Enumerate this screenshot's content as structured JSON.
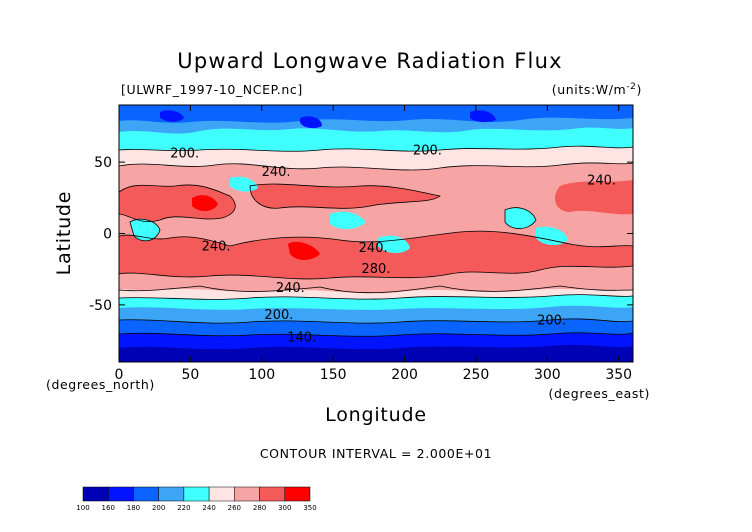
{
  "chart_data": {
    "type": "heatmap",
    "title": "Upward Longwave Radiation Flux",
    "source_label": "[ULWRF_1997-10_NCEP.nc]",
    "units_label": "(units:W/m^-2)",
    "xlabel": "Longitude",
    "ylabel": "Latitude",
    "x_unit_label": "(degrees_east)",
    "y_unit_label": "(degrees_north)",
    "xlim": [
      0,
      360
    ],
    "ylim": [
      -90,
      90
    ],
    "x_ticks": [
      0,
      50,
      100,
      150,
      200,
      250,
      300,
      350
    ],
    "y_ticks": [
      50,
      0,
      -50
    ],
    "contour_interval_text": "CONTOUR INTERVAL = 2.000E+01",
    "colorbar": {
      "boundaries": [
        "100",
        "160",
        "180",
        "200",
        "220",
        "240",
        "260",
        "280",
        "300",
        "350"
      ],
      "colors": [
        "#0000b4",
        "#0014ff",
        "#0a64ff",
        "#3ca5f5",
        "#40ffff",
        "#ffe4e4",
        "#f7a4a4",
        "#f55a5a",
        "#ff0000"
      ]
    },
    "contour_labels": [
      {
        "text": "200.",
        "lon": 46,
        "lat": 56
      },
      {
        "text": "200.",
        "lon": 216,
        "lat": 58
      },
      {
        "text": "240.",
        "lon": 110,
        "lat": 43
      },
      {
        "text": "240.",
        "lon": 338,
        "lat": 37
      },
      {
        "text": "240.",
        "lon": 68,
        "lat": -9
      },
      {
        "text": "240.",
        "lon": 178,
        "lat": -10
      },
      {
        "text": "280.",
        "lon": 180,
        "lat": -25
      },
      {
        "text": "240.",
        "lon": 120,
        "lat": -38
      },
      {
        "text": "200.",
        "lon": 112,
        "lat": -57
      },
      {
        "text": "200.",
        "lon": 303,
        "lat": -61
      },
      {
        "text": "140.",
        "lon": 128,
        "lat": -73
      }
    ],
    "grid": false
  }
}
